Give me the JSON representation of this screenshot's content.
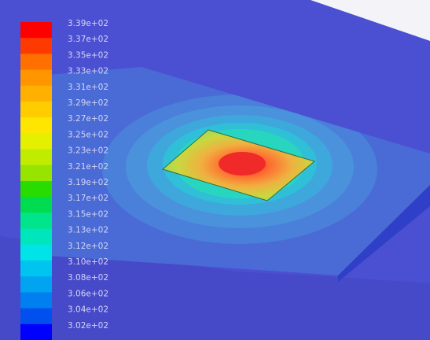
{
  "colorbar": {
    "labels": [
      "3.39e+02",
      "3.37e+02",
      "3.35e+02",
      "3.33e+02",
      "3.31e+02",
      "3.29e+02",
      "3.27e+02",
      "3.25e+02",
      "3.23e+02",
      "3.21e+02",
      "3.19e+02",
      "3.17e+02",
      "3.15e+02",
      "3.13e+02",
      "3.12e+02",
      "3.10e+02",
      "3.08e+02",
      "3.06e+02",
      "3.04e+02",
      "3.02e+02"
    ]
  }
}
